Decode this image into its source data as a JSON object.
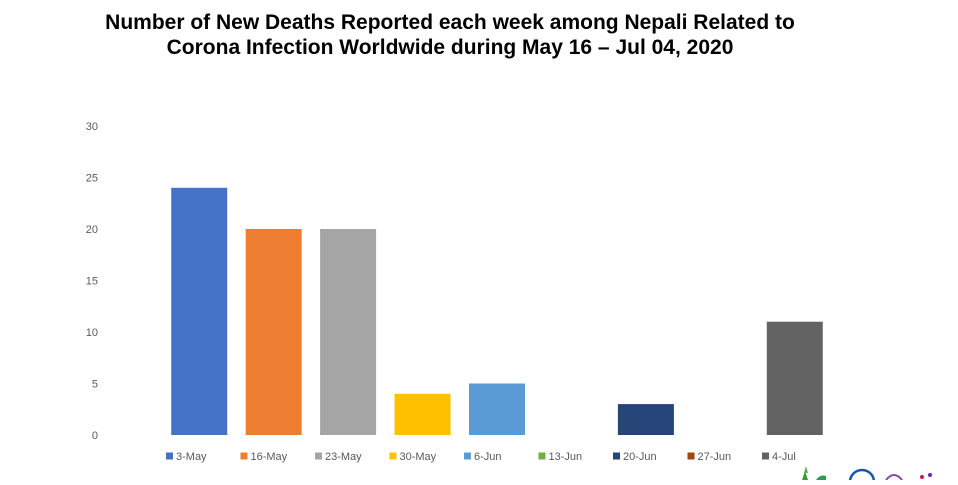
{
  "chart_data": {
    "type": "bar",
    "title_lines": [
      "Number of New Deaths Reported each week among Nepali Related to",
      "Corona Infection Worldwide during May 16 – Jul 04, 2020"
    ],
    "xlabel": "",
    "ylabel": "",
    "ylim": [
      0,
      30
    ],
    "yticks": [
      0,
      5,
      10,
      15,
      20,
      25,
      30
    ],
    "grid": false,
    "legend_position": "bottom",
    "categories": [
      "3-May",
      "16-May",
      "23-May",
      "30-May",
      "6-Jun",
      "13-Jun",
      "20-Jun",
      "27-Jun",
      "4-Jul"
    ],
    "values": [
      24,
      20,
      20,
      4,
      5,
      0,
      3,
      0,
      11
    ],
    "colors": [
      "#4472C4",
      "#ED7D31",
      "#A5A5A5",
      "#FFC000",
      "#5B9BD5",
      "#70AD47",
      "#264478",
      "#9E480E",
      "#636363"
    ]
  },
  "logo": {
    "icon": "organization-logo-icon"
  }
}
